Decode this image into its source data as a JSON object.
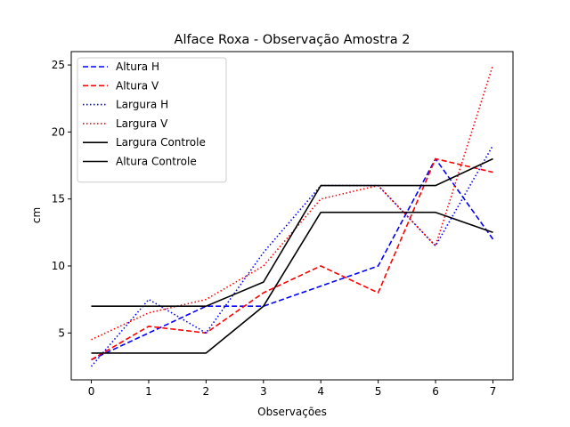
{
  "chart_data": {
    "type": "line",
    "title": "Alface Roxa - Observação Amostra 2",
    "xlabel": "Observações",
    "ylabel": "cm",
    "x": [
      0,
      1,
      2,
      3,
      4,
      5,
      6,
      7
    ],
    "xlim": [
      -0.35,
      7.35
    ],
    "ylim": [
      1.5,
      26
    ],
    "xticks": [
      0,
      1,
      2,
      3,
      4,
      5,
      6,
      7
    ],
    "yticks": [
      5,
      10,
      15,
      20,
      25
    ],
    "grid": false,
    "legend_position": "top-left",
    "series": [
      {
        "name": "Altura H",
        "color": "#0000ff",
        "style": "dashed",
        "values": [
          3,
          5,
          7,
          7,
          8.5,
          10,
          18,
          12
        ]
      },
      {
        "name": "Altura V",
        "color": "#ff0000",
        "style": "dashed",
        "values": [
          3,
          5.5,
          5,
          8,
          10,
          8,
          18,
          17
        ]
      },
      {
        "name": "Largura H",
        "color": "#0000ff",
        "style": "dotted",
        "values": [
          2.5,
          7.5,
          5,
          11,
          16,
          16,
          11.5,
          19
        ]
      },
      {
        "name": "Largura V",
        "color": "#ff0000",
        "style": "dotted",
        "values": [
          4.5,
          6.5,
          7.5,
          10,
          15,
          16,
          11.5,
          25
        ]
      },
      {
        "name": "Largura Controle",
        "color": "#000000",
        "style": "solid",
        "values": [
          7,
          7,
          7,
          8.8,
          16,
          16,
          16,
          18
        ]
      },
      {
        "name": "Altura Controle",
        "color": "#000000",
        "style": "solid",
        "values": [
          3.5,
          3.5,
          3.5,
          7,
          14,
          14,
          14,
          12.5
        ]
      }
    ]
  }
}
